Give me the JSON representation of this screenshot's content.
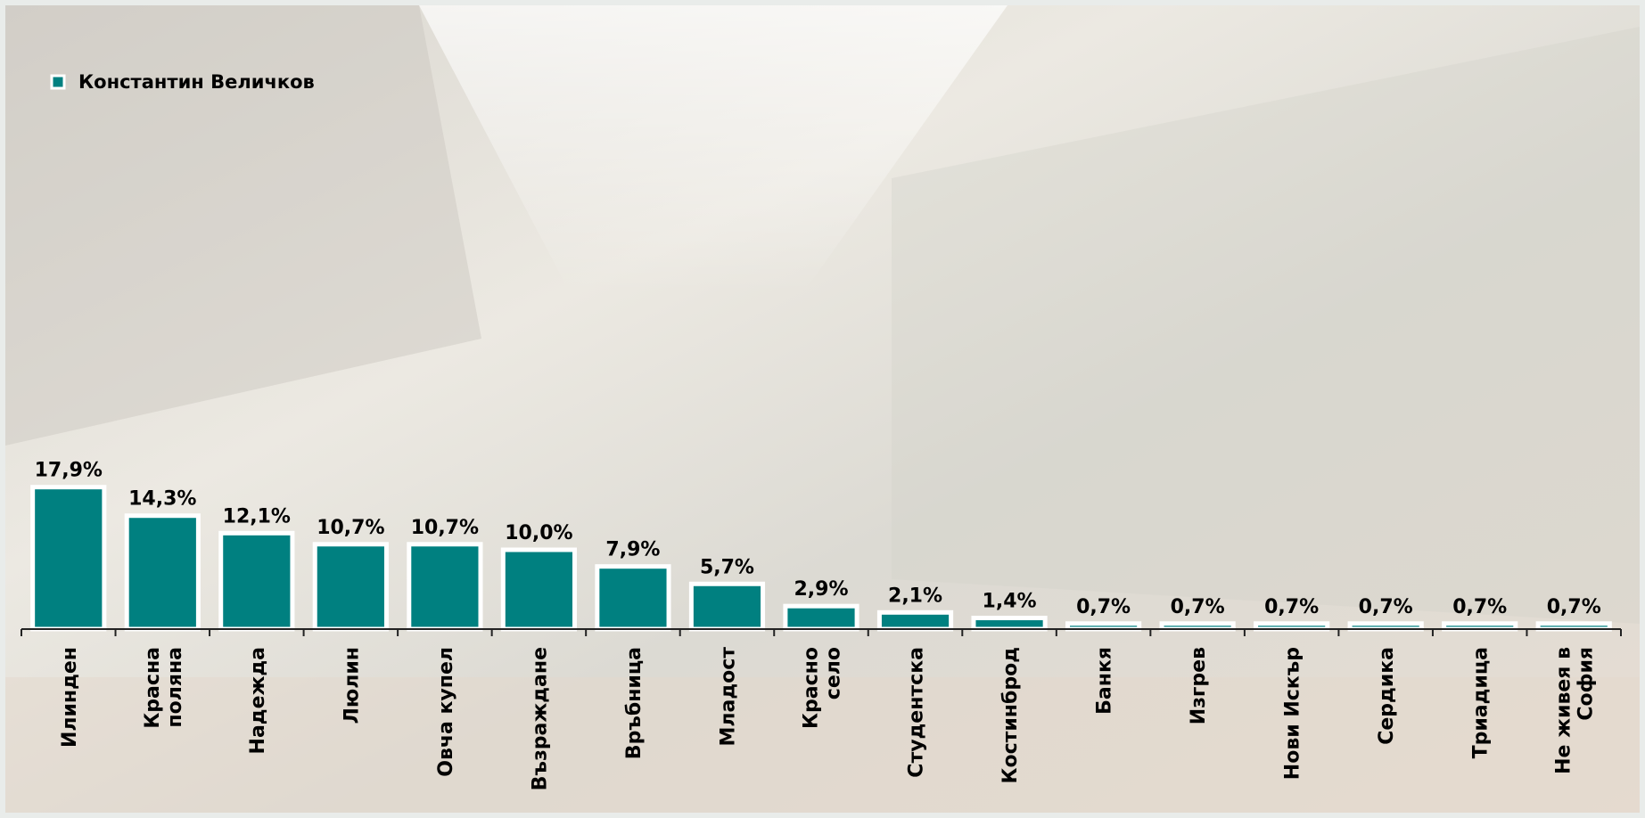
{
  "chart_data": {
    "type": "bar",
    "categories": [
      "Илинден",
      "Красна поляна",
      "Надежда",
      "Люлин",
      "Овча купел",
      "Възраждане",
      "Връбница",
      "Младост",
      "Красно село",
      "Студентска",
      "Костинброд",
      "Банкя",
      "Изгрев",
      "Нови Искър",
      "Сердика",
      "Триадица",
      "Не живея в София"
    ],
    "series": [
      {
        "name": "Константин Величков",
        "color": "#008080",
        "values": [
          17.9,
          14.3,
          12.1,
          10.7,
          10.7,
          10.0,
          7.9,
          5.7,
          2.9,
          2.1,
          1.4,
          0.7,
          0.7,
          0.7,
          0.7,
          0.7,
          0.7
        ],
        "value_labels": [
          "17,9%",
          "14,3%",
          "12,1%",
          "10,7%",
          "10,7%",
          "10,0%",
          "7,9%",
          "5,7%",
          "2,9%",
          "2,1%",
          "1,4%",
          "0,7%",
          "0,7%",
          "0,7%",
          "0,7%",
          "0,7%",
          "0,7%"
        ]
      }
    ],
    "legend": "top-left"
  }
}
